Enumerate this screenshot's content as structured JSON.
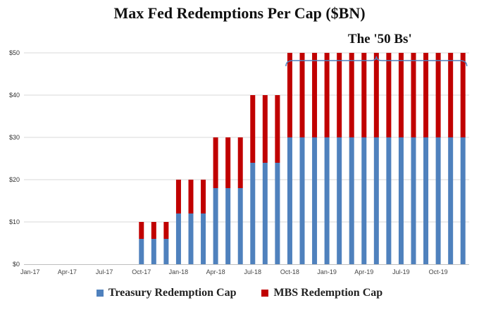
{
  "chart_data": {
    "type": "bar",
    "stacked": true,
    "title": "Max Fed Redemptions Per Cap ($BN)",
    "annotation": "The '50 Bs'",
    "x_tick_labels": [
      "Jan-17",
      "Apr-17",
      "Jul-17",
      "Oct-17",
      "Jan-18",
      "Apr-18",
      "Jul-18",
      "Oct-18",
      "Jan-19",
      "Apr-19",
      "Jul-19",
      "Oct-19"
    ],
    "y_tick_labels": [
      "$0",
      "$10",
      "$20",
      "$30",
      "$40",
      "$50"
    ],
    "ylim": [
      0,
      55
    ],
    "grid": true,
    "legend_position": "bottom",
    "categories": [
      "Jan-17",
      "Feb-17",
      "Mar-17",
      "Apr-17",
      "May-17",
      "Jun-17",
      "Jul-17",
      "Aug-17",
      "Sep-17",
      "Oct-17",
      "Nov-17",
      "Dec-17",
      "Jan-18",
      "Feb-18",
      "Mar-18",
      "Apr-18",
      "May-18",
      "Jun-18",
      "Jul-18",
      "Aug-18",
      "Sep-18",
      "Oct-18",
      "Nov-18",
      "Dec-18",
      "Jan-19",
      "Feb-19",
      "Mar-19",
      "Apr-19",
      "May-19",
      "Jun-19",
      "Jul-19",
      "Aug-19",
      "Sep-19",
      "Oct-19",
      "Nov-19",
      "Dec-19"
    ],
    "series": [
      {
        "name": "Treasury Redemption Cap",
        "color": "#4f81bd",
        "values": [
          0,
          0,
          0,
          0,
          0,
          0,
          0,
          0,
          0,
          6,
          6,
          6,
          12,
          12,
          12,
          18,
          18,
          18,
          24,
          24,
          24,
          30,
          30,
          30,
          30,
          30,
          30,
          30,
          30,
          30,
          30,
          30,
          30,
          30,
          30,
          30
        ]
      },
      {
        "name": "MBS Redemption Cap",
        "color": "#c00000",
        "values": [
          0,
          0,
          0,
          0,
          0,
          0,
          0,
          0,
          0,
          4,
          4,
          4,
          8,
          8,
          8,
          12,
          12,
          12,
          16,
          16,
          16,
          20,
          20,
          20,
          20,
          20,
          20,
          20,
          20,
          20,
          20,
          20,
          20,
          20,
          20,
          20
        ]
      }
    ],
    "bracket_start": "Oct-18",
    "bracket_end": "Dec-19"
  }
}
